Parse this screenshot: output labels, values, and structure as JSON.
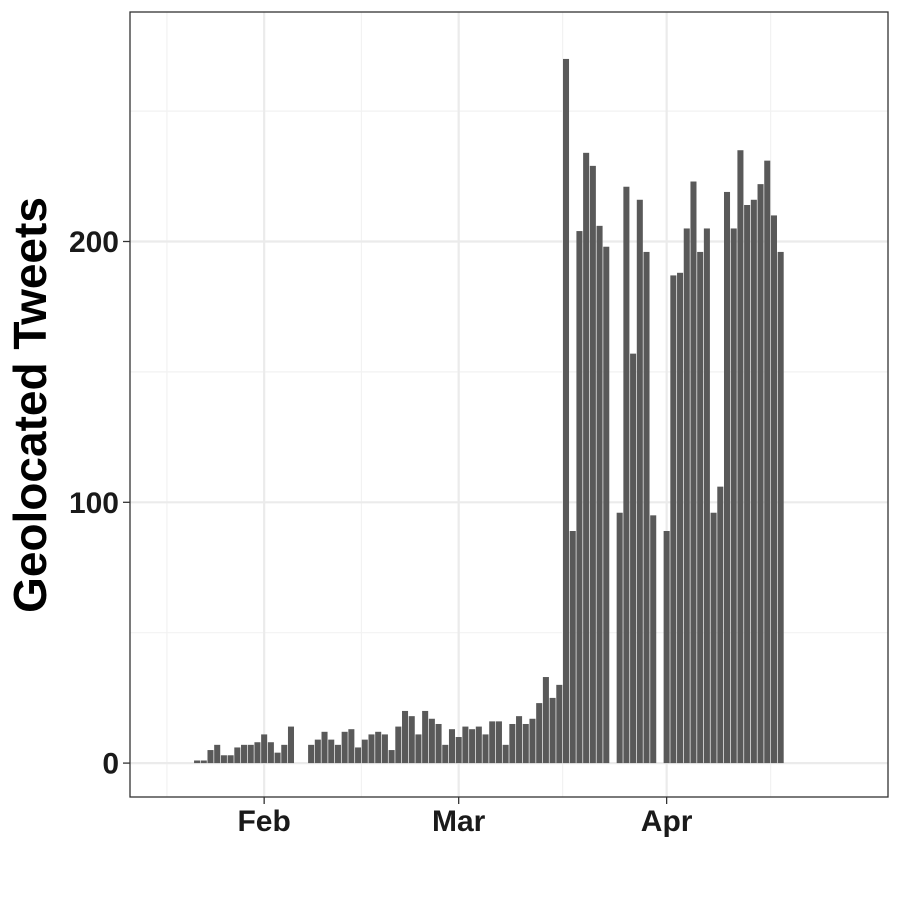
{
  "chart_data": {
    "type": "bar",
    "title": "",
    "xlabel": "",
    "ylabel": "Geolocated Tweets",
    "x_ticks": [
      {
        "label": "Feb",
        "date": "2020-02-01"
      },
      {
        "label": "Mar",
        "date": "2020-03-01"
      },
      {
        "label": "Apr",
        "date": "2020-04-01"
      }
    ],
    "y_ticks": [
      0,
      100,
      200
    ],
    "ylim": [
      -13,
      288
    ],
    "xlim": [
      "2020-01-12",
      "2020-05-04"
    ],
    "grid": true,
    "bar_color": "#595959",
    "series": [
      {
        "dates": [
          "2020-01-22",
          "2020-01-23",
          "2020-01-24",
          "2020-01-25",
          "2020-01-26",
          "2020-01-27",
          "2020-01-28",
          "2020-01-29",
          "2020-01-30",
          "2020-01-31",
          "2020-02-01",
          "2020-02-02",
          "2020-02-03",
          "2020-02-04",
          "2020-02-05",
          "2020-02-06",
          "2020-02-07",
          "2020-02-08",
          "2020-02-09",
          "2020-02-10",
          "2020-02-11",
          "2020-02-12",
          "2020-02-13",
          "2020-02-14",
          "2020-02-15",
          "2020-02-16",
          "2020-02-17",
          "2020-02-18",
          "2020-02-19",
          "2020-02-20",
          "2020-02-21",
          "2020-02-22",
          "2020-02-23",
          "2020-02-24",
          "2020-02-25",
          "2020-02-26",
          "2020-02-27",
          "2020-02-28",
          "2020-02-29",
          "2020-03-01",
          "2020-03-02",
          "2020-03-03",
          "2020-03-04",
          "2020-03-05",
          "2020-03-06",
          "2020-03-07",
          "2020-03-08",
          "2020-03-09",
          "2020-03-10",
          "2020-03-11",
          "2020-03-12",
          "2020-03-13",
          "2020-03-14",
          "2020-03-15",
          "2020-03-16",
          "2020-03-17",
          "2020-03-18",
          "2020-03-19",
          "2020-03-20",
          "2020-03-21",
          "2020-03-22",
          "2020-03-23",
          "2020-03-24",
          "2020-03-25",
          "2020-03-26",
          "2020-03-27",
          "2020-03-28",
          "2020-03-29",
          "2020-03-30",
          "2020-03-31",
          "2020-04-01",
          "2020-04-02",
          "2020-04-03",
          "2020-04-04",
          "2020-04-05",
          "2020-04-06",
          "2020-04-07",
          "2020-04-08",
          "2020-04-09",
          "2020-04-10",
          "2020-04-11",
          "2020-04-12",
          "2020-04-13",
          "2020-04-14",
          "2020-04-15",
          "2020-04-16",
          "2020-04-17",
          "2020-04-18"
        ],
        "values": [
          1,
          1,
          5,
          7,
          3,
          3,
          6,
          7,
          7,
          8,
          11,
          8,
          4,
          7,
          14,
          null,
          null,
          7,
          9,
          12,
          9,
          7,
          12,
          13,
          6,
          9,
          11,
          12,
          11,
          5,
          14,
          20,
          18,
          11,
          20,
          17,
          15,
          7,
          13,
          10,
          14,
          13,
          14,
          11,
          16,
          16,
          7,
          15,
          18,
          15,
          17,
          23,
          33,
          25,
          30,
          270,
          89,
          204,
          234,
          229,
          206,
          198,
          null,
          96,
          221,
          157,
          216,
          196,
          95,
          null,
          89,
          187,
          188,
          205,
          223,
          196,
          205,
          96,
          106,
          219,
          205,
          235,
          214,
          216,
          222,
          231,
          210,
          196
        ]
      }
    ]
  }
}
